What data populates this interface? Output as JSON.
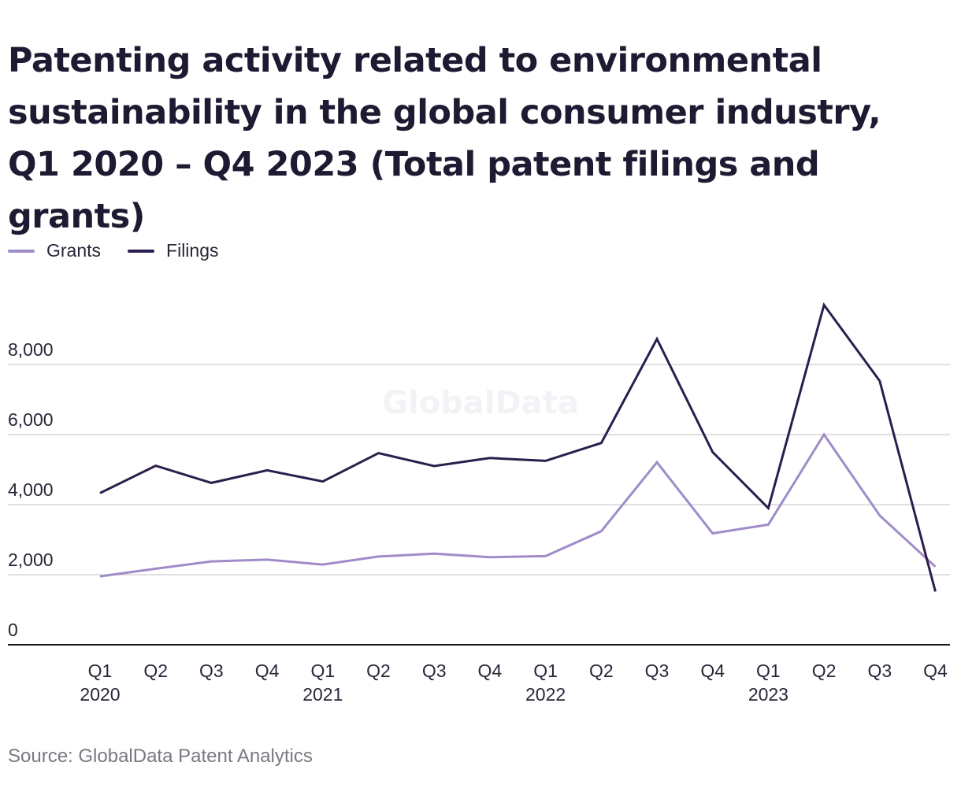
{
  "colors": {
    "grants": "#9f8cc9",
    "filings": "#2b1d4d",
    "grid": "#d6d6d9",
    "axis": "#1a1a1a"
  },
  "watermark": "GlobalData",
  "source": "Source: GlobalData Patent Analytics",
  "chart_data": {
    "type": "line",
    "title": "Patenting activity related to environmental sustainability in the global consumer industry, Q1 2020 – Q4 2023 (Total patent filings and grants)",
    "x": [
      {
        "quarter": "Q1",
        "year": "2020"
      },
      {
        "quarter": "Q2",
        "year": ""
      },
      {
        "quarter": "Q3",
        "year": ""
      },
      {
        "quarter": "Q4",
        "year": ""
      },
      {
        "quarter": "Q1",
        "year": "2021"
      },
      {
        "quarter": "Q2",
        "year": ""
      },
      {
        "quarter": "Q3",
        "year": ""
      },
      {
        "quarter": "Q4",
        "year": ""
      },
      {
        "quarter": "Q1",
        "year": "2022"
      },
      {
        "quarter": "Q2",
        "year": ""
      },
      {
        "quarter": "Q3",
        "year": ""
      },
      {
        "quarter": "Q4",
        "year": ""
      },
      {
        "quarter": "Q1",
        "year": "2023"
      },
      {
        "quarter": "Q2",
        "year": ""
      },
      {
        "quarter": "Q3",
        "year": ""
      },
      {
        "quarter": "Q4",
        "year": ""
      }
    ],
    "series": [
      {
        "name": "Grants",
        "color_key": "grants",
        "values": [
          1950,
          2170,
          2380,
          2430,
          2290,
          2520,
          2600,
          2500,
          2530,
          3240,
          5210,
          3180,
          3430,
          6000,
          3690,
          2230
        ]
      },
      {
        "name": "Filings",
        "color_key": "filings",
        "values": [
          4330,
          5110,
          4620,
          4980,
          4660,
          5470,
          5100,
          5330,
          5250,
          5760,
          8730,
          5500,
          3900,
          9700,
          7530,
          1520
        ]
      }
    ],
    "yticks": [
      {
        "value": 0,
        "label": "0"
      },
      {
        "value": 2000,
        "label": "2,000"
      },
      {
        "value": 4000,
        "label": "4,000"
      },
      {
        "value": 6000,
        "label": "6,000"
      },
      {
        "value": 8000,
        "label": "8,000"
      }
    ],
    "ylim": [
      0,
      10000
    ],
    "grid": true,
    "legend_position": "top-left"
  }
}
